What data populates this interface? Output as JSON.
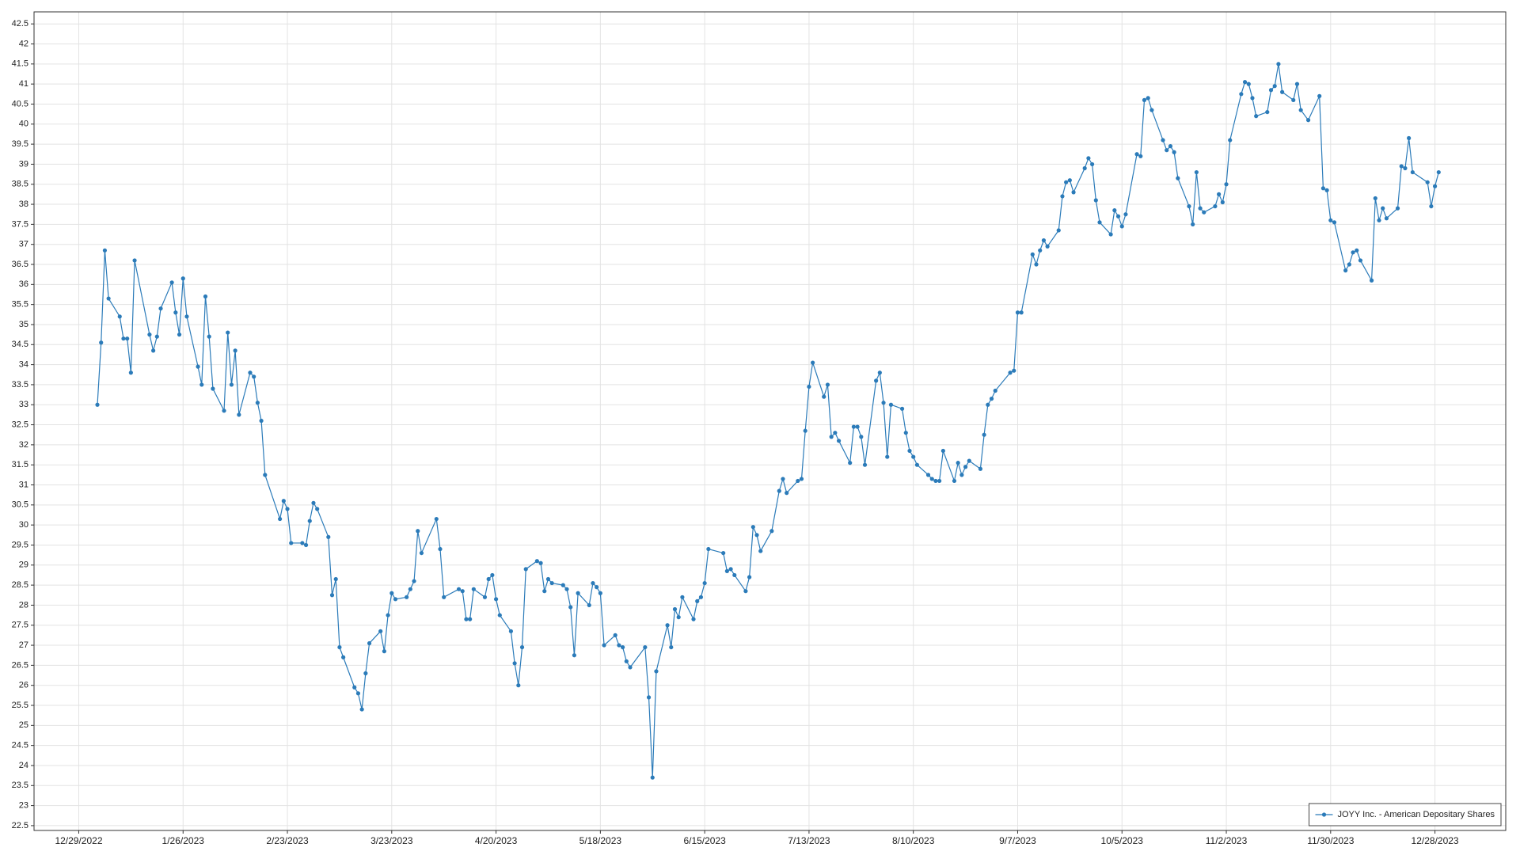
{
  "chart_data": {
    "type": "line",
    "x": [
      "1/3/2023",
      "1/4/2023",
      "1/5/2023",
      "1/6/2023",
      "1/9/2023",
      "1/10/2023",
      "1/11/2023",
      "1/12/2023",
      "1/13/2023",
      "1/17/2023",
      "1/18/2023",
      "1/19/2023",
      "1/20/2023",
      "1/23/2023",
      "1/24/2023",
      "1/25/2023",
      "1/26/2023",
      "1/27/2023",
      "1/30/2023",
      "1/31/2023",
      "2/1/2023",
      "2/2/2023",
      "2/3/2023",
      "2/6/2023",
      "2/7/2023",
      "2/8/2023",
      "2/9/2023",
      "2/10/2023",
      "2/13/2023",
      "2/14/2023",
      "2/15/2023",
      "2/16/2023",
      "2/17/2023",
      "2/21/2023",
      "2/22/2023",
      "2/23/2023",
      "2/24/2023",
      "2/27/2023",
      "2/28/2023",
      "3/1/2023",
      "3/2/2023",
      "3/3/2023",
      "3/6/2023",
      "3/7/2023",
      "3/8/2023",
      "3/9/2023",
      "3/10/2023",
      "3/13/2023",
      "3/14/2023",
      "3/15/2023",
      "3/16/2023",
      "3/17/2023",
      "3/20/2023",
      "3/21/2023",
      "3/22/2023",
      "3/23/2023",
      "3/24/2023",
      "3/27/2023",
      "3/28/2023",
      "3/29/2023",
      "3/30/2023",
      "3/31/2023",
      "4/4/2023",
      "4/5/2023",
      "4/6/2023",
      "4/10/2023",
      "4/11/2023",
      "4/12/2023",
      "4/13/2023",
      "4/14/2023",
      "4/17/2023",
      "4/18/2023",
      "4/19/2023",
      "4/20/2023",
      "4/21/2023",
      "4/24/2023",
      "4/25/2023",
      "4/26/2023",
      "4/27/2023",
      "4/28/2023",
      "5/1/2023",
      "5/2/2023",
      "5/3/2023",
      "5/4/2023",
      "5/5/2023",
      "5/8/2023",
      "5/9/2023",
      "5/10/2023",
      "5/11/2023",
      "5/12/2023",
      "5/15/2023",
      "5/16/2023",
      "5/17/2023",
      "5/18/2023",
      "5/19/2023",
      "5/22/2023",
      "5/23/2023",
      "5/24/2023",
      "5/25/2023",
      "5/26/2023",
      "5/30/2023",
      "5/31/2023",
      "6/1/2023",
      "6/2/2023",
      "6/5/2023",
      "6/6/2023",
      "6/7/2023",
      "6/8/2023",
      "6/9/2023",
      "6/12/2023",
      "6/13/2023",
      "6/14/2023",
      "6/15/2023",
      "6/16/2023",
      "6/20/2023",
      "6/21/2023",
      "6/22/2023",
      "6/23/2023",
      "6/26/2023",
      "6/27/2023",
      "6/28/2023",
      "6/29/2023",
      "6/30/2023",
      "7/3/2023",
      "7/5/2023",
      "7/6/2023",
      "7/7/2023",
      "7/10/2023",
      "7/11/2023",
      "7/12/2023",
      "7/13/2023",
      "7/14/2023",
      "7/17/2023",
      "7/18/2023",
      "7/19/2023",
      "7/20/2023",
      "7/21/2023",
      "7/24/2023",
      "7/25/2023",
      "7/26/2023",
      "7/27/2023",
      "7/28/2023",
      "7/31/2023",
      "8/1/2023",
      "8/2/2023",
      "8/3/2023",
      "8/4/2023",
      "8/7/2023",
      "8/8/2023",
      "8/9/2023",
      "8/10/2023",
      "8/11/2023",
      "8/14/2023",
      "8/15/2023",
      "8/16/2023",
      "8/17/2023",
      "8/18/2023",
      "8/21/2023",
      "8/22/2023",
      "8/23/2023",
      "8/24/2023",
      "8/25/2023",
      "8/28/2023",
      "8/29/2023",
      "8/30/2023",
      "8/31/2023",
      "9/1/2023",
      "9/5/2023",
      "9/6/2023",
      "9/7/2023",
      "9/8/2023",
      "9/11/2023",
      "9/12/2023",
      "9/13/2023",
      "9/14/2023",
      "9/15/2023",
      "9/18/2023",
      "9/19/2023",
      "9/20/2023",
      "9/21/2023",
      "9/22/2023",
      "9/25/2023",
      "9/26/2023",
      "9/27/2023",
      "9/28/2023",
      "9/29/2023",
      "10/2/2023",
      "10/3/2023",
      "10/4/2023",
      "10/5/2023",
      "10/6/2023",
      "10/9/2023",
      "10/10/2023",
      "10/11/2023",
      "10/12/2023",
      "10/13/2023",
      "10/16/2023",
      "10/17/2023",
      "10/18/2023",
      "10/19/2023",
      "10/20/2023",
      "10/23/2023",
      "10/24/2023",
      "10/25/2023",
      "10/26/2023",
      "10/27/2023",
      "10/30/2023",
      "10/31/2023",
      "11/1/2023",
      "11/2/2023",
      "11/3/2023",
      "11/6/2023",
      "11/7/2023",
      "11/8/2023",
      "11/9/2023",
      "11/10/2023",
      "11/13/2023",
      "11/14/2023",
      "11/15/2023",
      "11/16/2023",
      "11/17/2023",
      "11/20/2023",
      "11/21/2023",
      "11/22/2023",
      "11/24/2023",
      "11/27/2023",
      "11/28/2023",
      "11/29/2023",
      "11/30/2023",
      "12/1/2023",
      "12/4/2023",
      "12/5/2023",
      "12/6/2023",
      "12/7/2023",
      "12/8/2023",
      "12/11/2023",
      "12/12/2023",
      "12/13/2023",
      "12/14/2023",
      "12/15/2023",
      "12/18/2023",
      "12/19/2023",
      "12/20/2023",
      "12/21/2023",
      "12/22/2023",
      "12/26/2023",
      "12/27/2023",
      "12/28/2023",
      "12/29/2023"
    ],
    "series": [
      {
        "name": "JOYY Inc. - American Depositary Shares",
        "color": "#2b7bb9",
        "values": [
          33.0,
          34.55,
          36.85,
          35.65,
          35.2,
          34.65,
          34.65,
          33.8,
          36.6,
          34.75,
          34.35,
          34.7,
          35.4,
          36.05,
          35.3,
          34.75,
          36.15,
          35.2,
          33.95,
          33.5,
          35.7,
          34.7,
          33.4,
          32.85,
          34.8,
          33.5,
          34.35,
          32.75,
          33.8,
          33.7,
          33.05,
          32.6,
          31.25,
          30.15,
          30.6,
          30.4,
          29.55,
          29.55,
          29.5,
          30.1,
          30.55,
          30.4,
          29.7,
          28.25,
          28.65,
          26.95,
          26.7,
          25.95,
          25.8,
          25.4,
          26.3,
          27.05,
          27.35,
          26.85,
          27.75,
          28.3,
          28.15,
          28.2,
          28.4,
          28.6,
          29.85,
          29.3,
          30.15,
          29.4,
          28.2,
          28.4,
          28.35,
          27.65,
          27.65,
          28.4,
          28.2,
          28.65,
          28.75,
          28.15,
          27.75,
          27.35,
          26.55,
          26.0,
          26.95,
          28.9,
          29.1,
          29.05,
          28.35,
          28.65,
          28.55,
          28.5,
          28.4,
          27.95,
          26.75,
          28.3,
          28.0,
          28.55,
          28.45,
          28.3,
          27.0,
          27.25,
          27.0,
          26.95,
          26.6,
          26.45,
          26.95,
          25.7,
          23.7,
          26.35,
          27.5,
          26.95,
          27.9,
          27.7,
          28.2,
          27.65,
          28.1,
          28.2,
          28.55,
          29.4,
          29.3,
          28.85,
          28.9,
          28.75,
          28.35,
          28.7,
          29.95,
          29.75,
          29.35,
          29.85,
          30.85,
          31.15,
          30.8,
          31.1,
          31.15,
          32.35,
          33.45,
          34.05,
          33.2,
          33.5,
          32.2,
          32.3,
          32.1,
          31.55,
          32.45,
          32.45,
          32.2,
          31.5,
          33.6,
          33.8,
          33.05,
          31.7,
          33.0,
          32.9,
          32.3,
          31.85,
          31.7,
          31.5,
          31.25,
          31.15,
          31.1,
          31.1,
          31.85,
          31.1,
          31.55,
          31.25,
          31.45,
          31.6,
          31.4,
          32.25,
          33.0,
          33.15,
          33.35,
          33.8,
          33.85,
          35.3,
          35.3,
          36.75,
          36.5,
          36.85,
          37.1,
          36.95,
          37.35,
          38.2,
          38.55,
          38.6,
          38.3,
          38.9,
          39.15,
          39.0,
          38.1,
          37.55,
          37.25,
          37.85,
          37.7,
          37.45,
          37.75,
          39.25,
          39.2,
          40.6,
          40.65,
          40.35,
          39.6,
          39.35,
          39.45,
          39.3,
          38.65,
          37.95,
          37.5,
          38.8,
          37.9,
          37.8,
          37.95,
          38.25,
          38.05,
          38.5,
          39.6,
          40.75,
          41.05,
          41.0,
          40.65,
          40.2,
          40.3,
          40.85,
          40.95,
          41.5,
          40.8,
          40.6,
          41.0,
          40.35,
          40.1,
          40.7,
          38.4,
          38.35,
          37.6,
          37.55,
          36.35,
          36.5,
          36.8,
          36.85,
          36.6,
          36.1,
          38.15,
          37.6,
          37.9,
          37.65,
          37.9,
          38.95,
          38.9,
          39.65,
          38.8,
          38.55,
          37.95,
          38.45,
          38.8
        ]
      }
    ],
    "xlim": [
      "12/17/2022",
      "1/16/2024"
    ],
    "xticks": [
      "12/29/2022",
      "1/26/2023",
      "2/23/2023",
      "3/23/2023",
      "4/20/2023",
      "5/18/2023",
      "6/15/2023",
      "7/13/2023",
      "8/10/2023",
      "9/7/2023",
      "10/5/2023",
      "11/2/2023",
      "11/30/2023",
      "12/28/2023"
    ],
    "ylim": [
      22.38,
      42.8
    ],
    "yticks": [
      22.5,
      23,
      23.5,
      24,
      24.5,
      25,
      25.5,
      26,
      26.5,
      27,
      27.5,
      28,
      28.5,
      29,
      29.5,
      30,
      30.5,
      31,
      31.5,
      32,
      32.5,
      33,
      33.5,
      34,
      34.5,
      35,
      35.5,
      36,
      36.5,
      37,
      37.5,
      38,
      38.5,
      39,
      39.5,
      40,
      40.5,
      41,
      41.5,
      42,
      42.5
    ],
    "grid": true,
    "markers": true,
    "legend": "lower right"
  }
}
